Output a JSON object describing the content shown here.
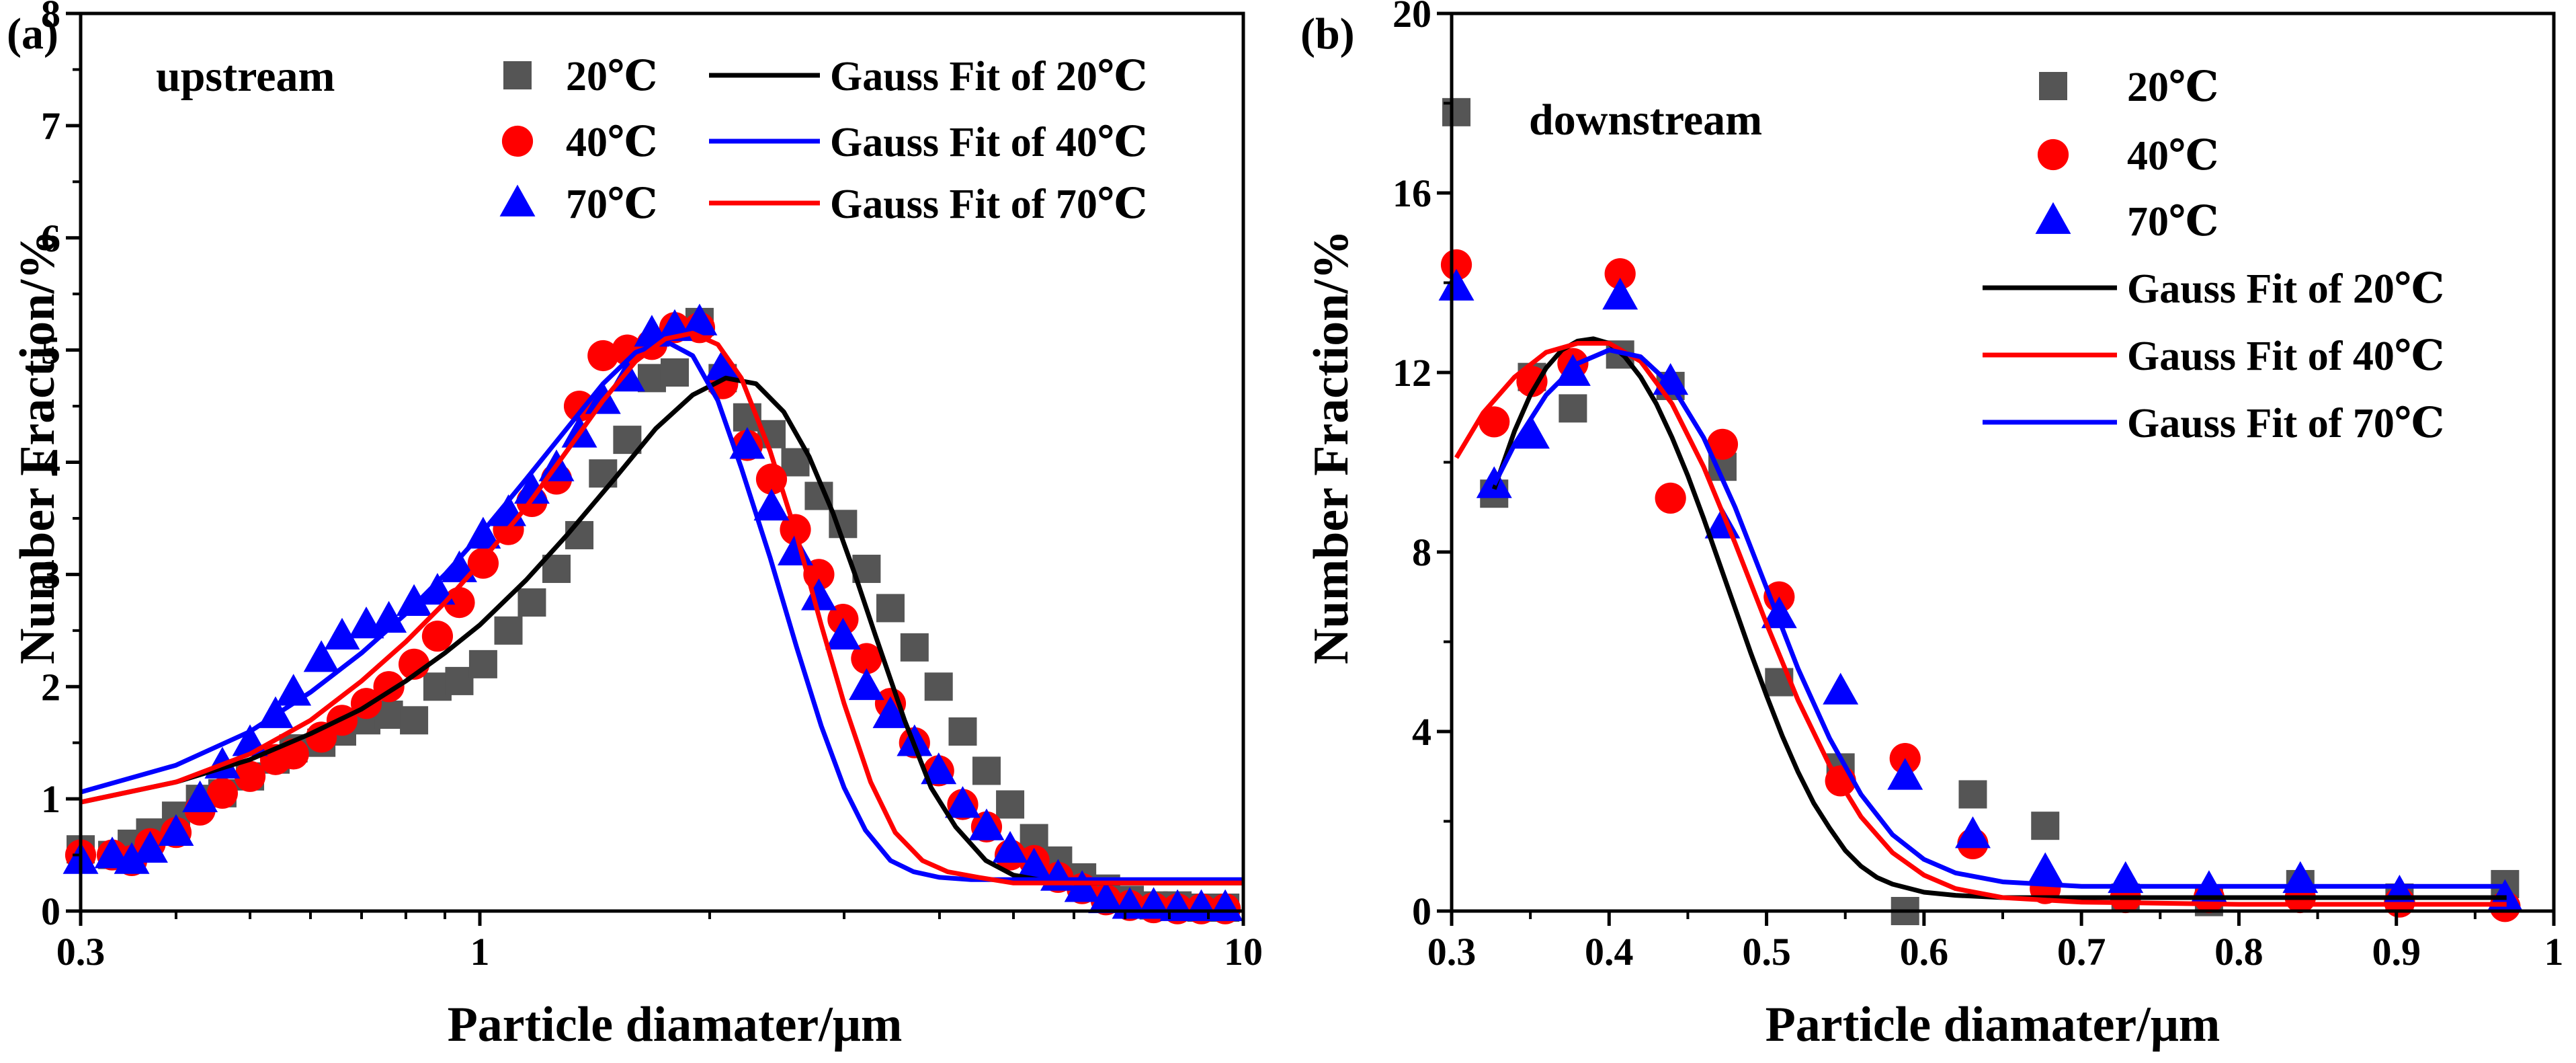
{
  "chart_data": [
    {
      "panel": "(a)",
      "type": "scatter",
      "annotation": "upstream",
      "xscale": "log",
      "xlim": [
        0.3,
        10
      ],
      "ylim": [
        0,
        8
      ],
      "xticks": [
        0.3,
        1,
        10
      ],
      "xtick_labels": [
        "0.3",
        "1",
        "10"
      ],
      "yticks": [
        0,
        1,
        2,
        3,
        4,
        5,
        6,
        7,
        8
      ],
      "ytick_labels": [
        "0",
        "1",
        "2",
        "3",
        "4",
        "5",
        "6",
        "7",
        "8"
      ],
      "xlabel": "Particle diamater/μm",
      "ylabel": "Number Fraction/%",
      "legend_placement": "top-right",
      "legend": [
        {
          "label": "20℃",
          "kind": "marker",
          "marker": "square",
          "color": "#555555"
        },
        {
          "label": "40℃",
          "kind": "marker",
          "marker": "circle",
          "color": "#ff0000"
        },
        {
          "label": "70℃",
          "kind": "marker",
          "marker": "triangle",
          "color": "#0000ff"
        },
        {
          "label": "Gauss Fit of 20℃",
          "kind": "line",
          "color": "#000000"
        },
        {
          "label": "Gauss Fit of 40℃",
          "kind": "line",
          "color": "#0000ff"
        },
        {
          "label": "Gauss Fit of 70℃",
          "kind": "line",
          "color": "#ff0000"
        }
      ],
      "series": [
        {
          "name": "20℃",
          "kind": "scatter",
          "marker": "square",
          "color": "#555555",
          "x": [
            0.3,
            0.33,
            0.35,
            0.37,
            0.4,
            0.43,
            0.46,
            0.5,
            0.54,
            0.57,
            0.62,
            0.66,
            0.71,
            0.76,
            0.82,
            0.88,
            0.94,
            1.01,
            1.09,
            1.17,
            1.26,
            1.35,
            1.45,
            1.56,
            1.68,
            1.8,
            1.94,
            2.08,
            2.24,
            2.41,
            2.59,
            2.78,
            2.99,
            3.21,
            3.45,
            3.71,
            3.99,
            4.29,
            4.61,
            4.95,
            5.32,
            5.72,
            6.15,
            6.61,
            7.1,
            7.63,
            8.2,
            8.81,
            9.47
          ],
          "y": [
            0.55,
            0.5,
            0.6,
            0.7,
            0.85,
            1.0,
            1.05,
            1.2,
            1.35,
            1.45,
            1.5,
            1.6,
            1.7,
            1.75,
            1.7,
            2.0,
            2.05,
            2.2,
            2.5,
            2.75,
            3.05,
            3.35,
            3.9,
            4.2,
            4.75,
            4.8,
            5.25,
            4.75,
            4.4,
            4.25,
            4.0,
            3.7,
            3.45,
            3.05,
            2.7,
            2.35,
            2.0,
            1.6,
            1.25,
            0.95,
            0.65,
            0.45,
            0.3,
            0.2,
            0.1,
            0.05,
            0.05,
            0.03,
            0.03
          ]
        },
        {
          "name": "40℃",
          "kind": "scatter",
          "marker": "circle",
          "color": "#ff0000",
          "x": [
            0.3,
            0.33,
            0.35,
            0.37,
            0.4,
            0.43,
            0.46,
            0.5,
            0.54,
            0.57,
            0.62,
            0.66,
            0.71,
            0.76,
            0.82,
            0.88,
            0.94,
            1.01,
            1.09,
            1.17,
            1.26,
            1.35,
            1.45,
            1.56,
            1.68,
            1.8,
            1.94,
            2.08,
            2.24,
            2.41,
            2.59,
            2.78,
            2.99,
            3.21,
            3.45,
            3.71,
            3.99,
            4.29,
            4.61,
            4.95,
            5.32,
            5.72,
            6.15,
            6.61,
            7.1,
            7.63,
            8.2,
            8.81,
            9.47
          ],
          "y": [
            0.5,
            0.5,
            0.45,
            0.6,
            0.7,
            0.9,
            1.05,
            1.2,
            1.35,
            1.4,
            1.55,
            1.7,
            1.85,
            2.0,
            2.2,
            2.45,
            2.75,
            3.1,
            3.4,
            3.65,
            3.85,
            4.5,
            4.95,
            5.0,
            5.05,
            5.2,
            5.2,
            4.7,
            4.15,
            3.85,
            3.4,
            3.0,
            2.6,
            2.25,
            1.85,
            1.5,
            1.25,
            0.95,
            0.75,
            0.5,
            0.45,
            0.3,
            0.2,
            0.1,
            0.05,
            0.03,
            0.02,
            0.02,
            0.02
          ]
        },
        {
          "name": "70℃",
          "kind": "scatter",
          "marker": "triangle",
          "color": "#0000ff",
          "x": [
            0.3,
            0.33,
            0.35,
            0.37,
            0.4,
            0.43,
            0.46,
            0.5,
            0.54,
            0.57,
            0.62,
            0.66,
            0.71,
            0.76,
            0.82,
            0.88,
            0.94,
            1.01,
            1.09,
            1.17,
            1.26,
            1.35,
            1.45,
            1.56,
            1.68,
            1.8,
            1.94,
            2.08,
            2.24,
            2.41,
            2.59,
            2.78,
            2.99,
            3.21,
            3.45,
            3.71,
            3.99,
            4.29,
            4.61,
            4.95,
            5.32,
            5.72,
            6.15,
            6.61,
            7.1,
            7.63,
            8.2,
            8.81,
            9.47
          ],
          "y": [
            0.45,
            0.5,
            0.45,
            0.55,
            0.7,
            1.0,
            1.3,
            1.5,
            1.75,
            1.95,
            2.25,
            2.45,
            2.55,
            2.6,
            2.75,
            2.85,
            3.05,
            3.35,
            3.55,
            3.75,
            3.95,
            4.25,
            4.55,
            4.75,
            5.15,
            5.2,
            5.25,
            4.85,
            4.15,
            3.6,
            3.2,
            2.8,
            2.45,
            2.0,
            1.75,
            1.5,
            1.25,
            0.95,
            0.75,
            0.55,
            0.4,
            0.3,
            0.2,
            0.1,
            0.05,
            0.05,
            0.03,
            0.03,
            0.03
          ]
        },
        {
          "name": "Gauss Fit of 20℃",
          "kind": "line",
          "color": "#000000",
          "x": [
            0.3,
            0.4,
            0.5,
            0.6,
            0.7,
            0.8,
            0.9,
            1.0,
            1.15,
            1.3,
            1.5,
            1.7,
            1.9,
            2.1,
            2.3,
            2.5,
            2.7,
            2.9,
            3.1,
            3.3,
            3.6,
            3.9,
            4.2,
            4.6,
            5.0,
            5.5,
            6.0,
            7.0,
            8.0,
            10.0
          ],
          "y": [
            0.97,
            1.15,
            1.35,
            1.58,
            1.8,
            2.05,
            2.3,
            2.55,
            2.95,
            3.35,
            3.85,
            4.3,
            4.6,
            4.75,
            4.7,
            4.45,
            4.05,
            3.55,
            3.0,
            2.45,
            1.7,
            1.1,
            0.75,
            0.45,
            0.32,
            0.27,
            0.25,
            0.25,
            0.25,
            0.25
          ]
        },
        {
          "name": "Gauss Fit of 40℃",
          "kind": "line",
          "color": "#0000ff",
          "x": [
            0.3,
            0.4,
            0.5,
            0.6,
            0.7,
            0.8,
            0.9,
            1.0,
            1.15,
            1.3,
            1.45,
            1.6,
            1.75,
            1.9,
            2.05,
            2.2,
            2.4,
            2.6,
            2.8,
            3.0,
            3.2,
            3.45,
            3.7,
            4.0,
            4.4,
            5.0,
            6.0,
            8.0,
            10.0
          ],
          "y": [
            1.06,
            1.3,
            1.6,
            1.95,
            2.3,
            2.65,
            3.0,
            3.35,
            3.85,
            4.3,
            4.7,
            4.98,
            5.08,
            4.95,
            4.55,
            3.95,
            3.15,
            2.35,
            1.65,
            1.1,
            0.72,
            0.45,
            0.35,
            0.3,
            0.28,
            0.28,
            0.28,
            0.28,
            0.28
          ]
        },
        {
          "name": "Gauss Fit of 70℃",
          "kind": "line",
          "color": "#ff0000",
          "x": [
            0.3,
            0.4,
            0.5,
            0.6,
            0.7,
            0.8,
            0.9,
            1.0,
            1.15,
            1.3,
            1.45,
            1.6,
            1.75,
            1.9,
            2.05,
            2.2,
            2.4,
            2.6,
            2.8,
            3.0,
            3.25,
            3.5,
            3.8,
            4.1,
            4.5,
            5.0,
            6.0,
            8.0,
            10.0
          ],
          "y": [
            0.97,
            1.15,
            1.4,
            1.7,
            2.05,
            2.4,
            2.75,
            3.1,
            3.6,
            4.1,
            4.55,
            4.9,
            5.1,
            5.15,
            5.05,
            4.75,
            4.1,
            3.35,
            2.55,
            1.85,
            1.15,
            0.7,
            0.45,
            0.35,
            0.3,
            0.25,
            0.25,
            0.25,
            0.25
          ]
        }
      ]
    },
    {
      "panel": "(b)",
      "type": "scatter",
      "annotation": "downstream",
      "xscale": "linear",
      "xlim": [
        0.3,
        1.0
      ],
      "ylim": [
        0,
        20
      ],
      "xticks": [
        0.3,
        0.4,
        0.5,
        0.6,
        0.7,
        0.8,
        0.9,
        1.0
      ],
      "xtick_labels": [
        "0.3",
        "0.4",
        "0.5",
        "0.6",
        "0.7",
        "0.8",
        "0.9",
        "1"
      ],
      "yticks": [
        0,
        4,
        8,
        12,
        16,
        20
      ],
      "ytick_labels": [
        "0",
        "4",
        "8",
        "12",
        "16",
        "20"
      ],
      "xlabel": "Particle diamater/μm",
      "ylabel": "Number Fraction/%",
      "legend_placement": "top-right",
      "legend": [
        {
          "label": "20℃",
          "kind": "marker",
          "marker": "square",
          "color": "#555555"
        },
        {
          "label": "40℃",
          "kind": "marker",
          "marker": "circle",
          "color": "#ff0000"
        },
        {
          "label": "70℃",
          "kind": "marker",
          "marker": "triangle",
          "color": "#0000ff"
        },
        {
          "label": "Gauss Fit of 20℃",
          "kind": "line",
          "color": "#000000"
        },
        {
          "label": "Gauss Fit of 40℃",
          "kind": "line",
          "color": "#ff0000"
        },
        {
          "label": "Gauss Fit of 70℃",
          "kind": "line",
          "color": "#0000ff"
        }
      ],
      "series": [
        {
          "name": "20℃",
          "kind": "scatter",
          "marker": "square",
          "color": "#555555",
          "x": [
            0.303,
            0.327,
            0.351,
            0.377,
            0.407,
            0.439,
            0.472,
            0.508,
            0.547,
            0.588,
            0.631,
            0.677,
            0.728,
            0.781,
            0.839,
            0.902,
            0.969
          ],
          "y": [
            17.8,
            9.3,
            11.9,
            11.2,
            12.4,
            11.7,
            9.9,
            5.1,
            3.2,
            0.0,
            2.6,
            1.9,
            0.3,
            0.2,
            0.6,
            0.3,
            0.6
          ]
        },
        {
          "name": "40℃",
          "kind": "scatter",
          "marker": "circle",
          "color": "#ff0000",
          "x": [
            0.303,
            0.327,
            0.351,
            0.377,
            0.407,
            0.439,
            0.472,
            0.508,
            0.547,
            0.588,
            0.631,
            0.677,
            0.728,
            0.781,
            0.839,
            0.902,
            0.969
          ],
          "y": [
            14.4,
            10.9,
            11.8,
            12.2,
            14.2,
            9.2,
            10.4,
            7.0,
            2.9,
            3.4,
            1.5,
            0.5,
            0.3,
            0.3,
            0.3,
            0.2,
            0.1
          ]
        },
        {
          "name": "70℃",
          "kind": "scatter",
          "marker": "triangle",
          "color": "#0000ff",
          "x": [
            0.303,
            0.327,
            0.351,
            0.377,
            0.407,
            0.439,
            0.472,
            0.508,
            0.547,
            0.588,
            0.631,
            0.677,
            0.728,
            0.781,
            0.839,
            0.902,
            0.969
          ],
          "y": [
            13.9,
            9.5,
            10.6,
            12.0,
            13.7,
            11.8,
            8.6,
            6.6,
            4.9,
            3.0,
            1.7,
            0.9,
            0.7,
            0.5,
            0.7,
            0.4,
            0.3
          ]
        },
        {
          "name": "Gauss Fit of 20℃",
          "kind": "line",
          "color": "#000000",
          "x": [
            0.327,
            0.34,
            0.35,
            0.36,
            0.37,
            0.38,
            0.39,
            0.4,
            0.41,
            0.42,
            0.43,
            0.44,
            0.45,
            0.46,
            0.47,
            0.48,
            0.49,
            0.5,
            0.51,
            0.52,
            0.53,
            0.54,
            0.55,
            0.56,
            0.57,
            0.58,
            0.6,
            0.62,
            0.65,
            0.7,
            0.8,
            0.9,
            0.97
          ],
          "y": [
            9.4,
            10.7,
            11.5,
            12.1,
            12.5,
            12.7,
            12.75,
            12.65,
            12.35,
            11.9,
            11.3,
            10.55,
            9.7,
            8.75,
            7.75,
            6.75,
            5.75,
            4.8,
            3.9,
            3.1,
            2.4,
            1.85,
            1.35,
            1.0,
            0.75,
            0.6,
            0.42,
            0.35,
            0.3,
            0.3,
            0.3,
            0.3,
            0.3
          ]
        },
        {
          "name": "Gauss Fit of 40℃",
          "kind": "line",
          "color": "#ff0000",
          "x": [
            0.303,
            0.32,
            0.34,
            0.36,
            0.38,
            0.4,
            0.42,
            0.44,
            0.46,
            0.48,
            0.5,
            0.52,
            0.54,
            0.56,
            0.58,
            0.6,
            0.62,
            0.65,
            0.7,
            0.8,
            0.9,
            0.97
          ],
          "y": [
            10.1,
            11.1,
            11.9,
            12.45,
            12.65,
            12.65,
            12.25,
            11.3,
            9.9,
            8.2,
            6.4,
            4.7,
            3.25,
            2.1,
            1.3,
            0.8,
            0.5,
            0.3,
            0.2,
            0.15,
            0.15,
            0.15
          ]
        },
        {
          "name": "Gauss Fit of 70℃",
          "kind": "line",
          "color": "#0000ff",
          "x": [
            0.327,
            0.34,
            0.36,
            0.38,
            0.4,
            0.42,
            0.44,
            0.46,
            0.48,
            0.5,
            0.52,
            0.54,
            0.56,
            0.58,
            0.6,
            0.62,
            0.65,
            0.7,
            0.8,
            0.9,
            0.97
          ],
          "y": [
            9.5,
            10.4,
            11.5,
            12.2,
            12.5,
            12.35,
            11.7,
            10.55,
            9.0,
            7.2,
            5.4,
            3.85,
            2.6,
            1.7,
            1.15,
            0.85,
            0.65,
            0.55,
            0.55,
            0.55,
            0.55
          ]
        }
      ]
    }
  ]
}
